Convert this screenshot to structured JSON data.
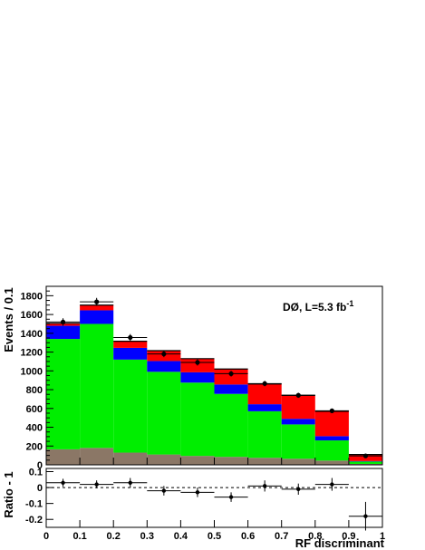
{
  "chart_data": [
    {
      "type": "bar",
      "stacked": true,
      "bin_edges": [
        0,
        0.1,
        0.2,
        0.3,
        0.4,
        0.5,
        0.6,
        0.7,
        0.8,
        0.9,
        1.0
      ],
      "series": [
        {
          "color": "#8b7766",
          "values": [
            165,
            180,
            130,
            110,
            95,
            85,
            75,
            65,
            45,
            10
          ]
        },
        {
          "color": "#00ee00",
          "values": [
            1175,
            1320,
            990,
            880,
            780,
            670,
            495,
            365,
            215,
            25
          ]
        },
        {
          "color": "#0000ff",
          "values": [
            140,
            145,
            125,
            115,
            110,
            100,
            75,
            60,
            45,
            5
          ]
        },
        {
          "color": "#ff0000",
          "values": [
            25,
            55,
            70,
            110,
            145,
            165,
            215,
            250,
            265,
            70
          ]
        }
      ],
      "data_points": {
        "x": [
          0.05,
          0.15,
          0.25,
          0.35,
          0.45,
          0.55,
          0.65,
          0.75,
          0.85,
          0.95
        ],
        "y": [
          1520,
          1735,
          1355,
          1180,
          1090,
          970,
          865,
          740,
          575,
          95
        ],
        "yerr": [
          40,
          42,
          37,
          34,
          33,
          31,
          29,
          27,
          24,
          10
        ]
      },
      "xlim": [
        0,
        1
      ],
      "ylim": [
        0,
        1900
      ],
      "yticks": [
        0,
        200,
        400,
        600,
        800,
        1000,
        1200,
        1400,
        1600,
        1800
      ],
      "ylabel": "Events / 0.1",
      "annotation": {
        "main": "DØ, L=5.3 fb",
        "sup": "-1"
      }
    },
    {
      "type": "scatter",
      "x": [
        0.05,
        0.15,
        0.25,
        0.35,
        0.45,
        0.55,
        0.65,
        0.75,
        0.85,
        0.95
      ],
      "y": [
        0.03,
        0.02,
        0.03,
        -0.02,
        -0.03,
        -0.06,
        0.01,
        -0.01,
        0.02,
        -0.18
      ],
      "yerr": [
        0.025,
        0.025,
        0.03,
        0.03,
        0.03,
        0.03,
        0.035,
        0.035,
        0.04,
        0.09
      ],
      "xlim": [
        0,
        1
      ],
      "ylim": [
        -0.25,
        0.12
      ],
      "yticks": [
        "0.1",
        "0",
        "-0.1",
        "-0.2"
      ],
      "xticks": [
        "0",
        "0.1",
        "0.2",
        "0.3",
        "0.4",
        "0.5",
        "0.6",
        "0.7",
        "0.8",
        "0.9",
        "1"
      ],
      "ylabel": "Ratio - 1",
      "xlabel": "RF discriminant",
      "reference_line": 0
    }
  ]
}
